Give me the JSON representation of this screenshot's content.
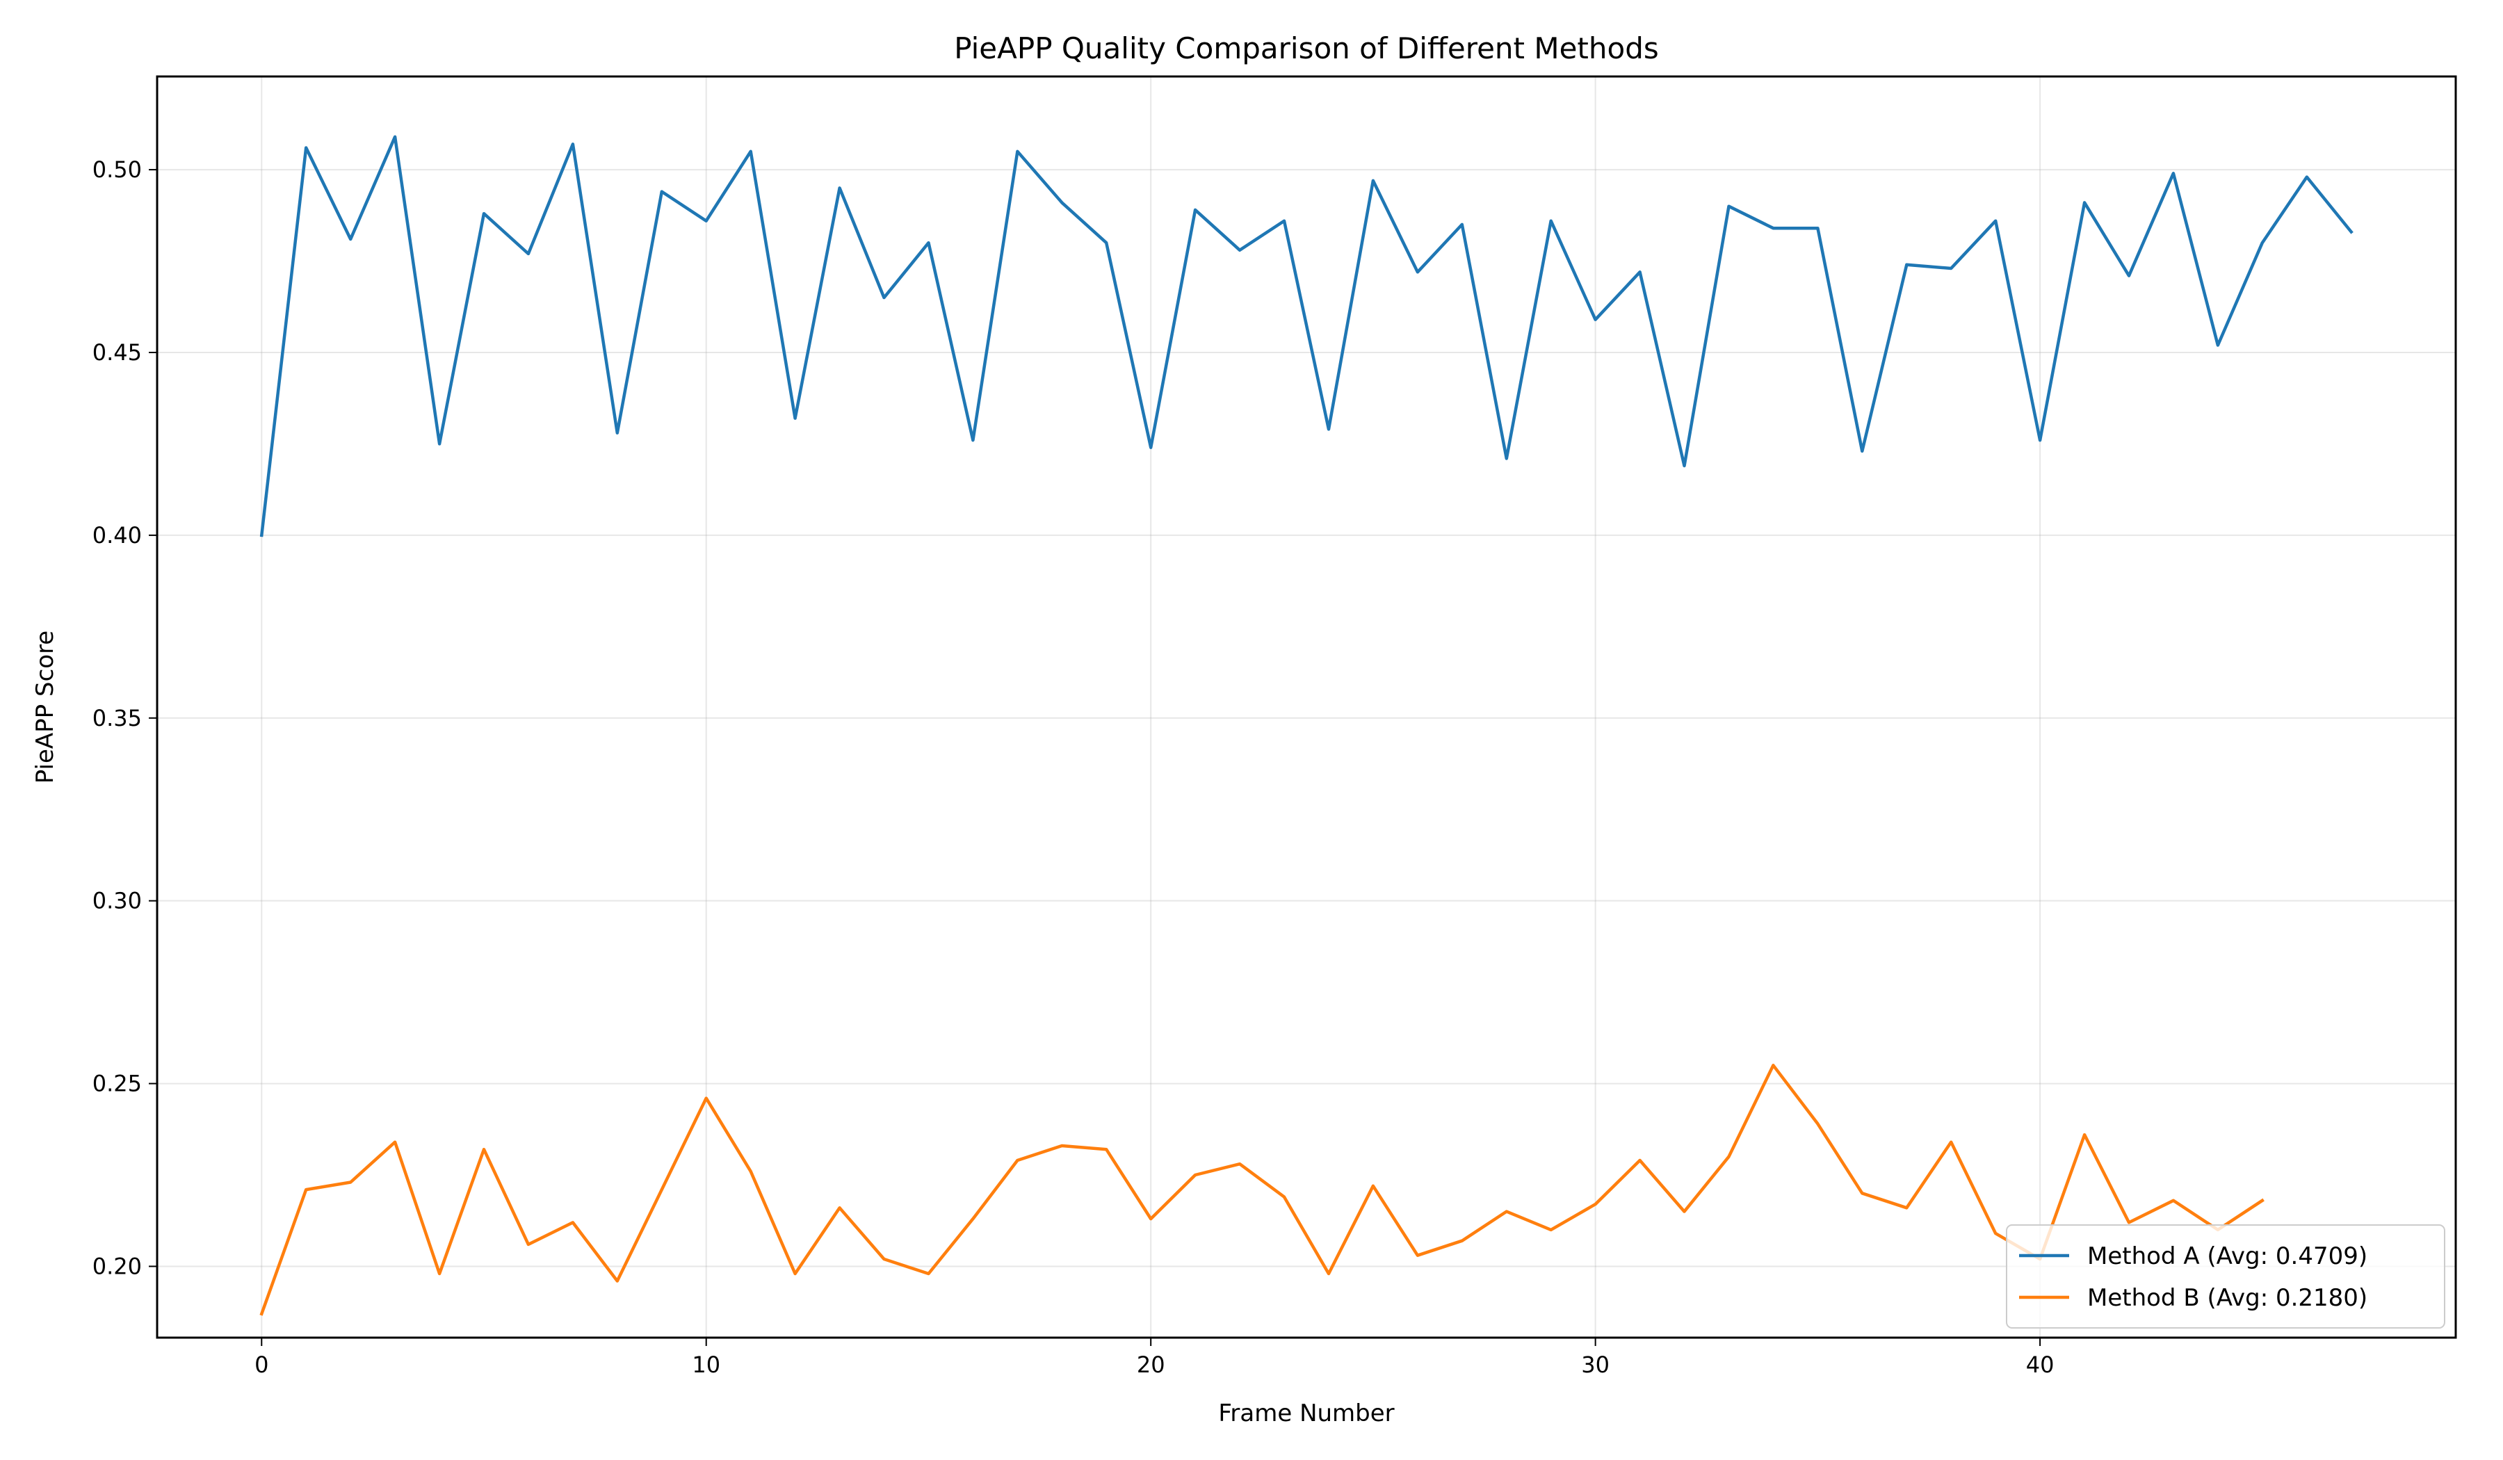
{
  "chart_data": {
    "type": "line",
    "title": "PieAPP Quality Comparison of Different Methods",
    "xlabel": "Frame Number",
    "ylabel": "PieAPP Score",
    "xlim": [
      -2.35,
      49.35
    ],
    "ylim": [
      0.1805,
      0.5255
    ],
    "xticks": [
      0,
      10,
      20,
      30,
      40
    ],
    "xtick_labels": [
      "0",
      "10",
      "20",
      "30",
      "40"
    ],
    "yticks": [
      0.2,
      0.25,
      0.3,
      0.35,
      0.4,
      0.45,
      0.5
    ],
    "ytick_labels": [
      "0.20",
      "0.25",
      "0.30",
      "0.35",
      "0.40",
      "0.45",
      "0.50"
    ],
    "grid": true,
    "legend_position": "bottom-right",
    "series": [
      {
        "name": "Method A (Avg: 0.4709)",
        "color": "#1f77b4",
        "x": [
          0,
          1,
          2,
          3,
          4,
          5,
          6,
          7,
          8,
          9,
          10,
          11,
          12,
          13,
          14,
          15,
          16,
          17,
          18,
          19,
          20,
          21,
          22,
          23,
          24,
          25,
          26,
          27,
          28,
          29,
          30,
          31,
          32,
          33,
          34,
          35,
          36,
          37,
          38,
          39,
          40,
          41,
          42,
          43,
          44,
          45,
          46,
          47
        ],
        "values": [
          0.4,
          0.506,
          0.481,
          0.509,
          0.425,
          0.488,
          0.477,
          0.507,
          0.428,
          0.494,
          0.486,
          0.505,
          0.432,
          0.495,
          0.465,
          0.48,
          0.426,
          0.505,
          0.491,
          0.48,
          0.424,
          0.489,
          0.478,
          0.486,
          0.429,
          0.497,
          0.472,
          0.485,
          0.421,
          0.486,
          0.459,
          0.472,
          0.419,
          0.49,
          0.484,
          0.484,
          0.423,
          0.474,
          0.473,
          0.486,
          0.426,
          0.491,
          0.471,
          0.499,
          0.452,
          0.48,
          0.498,
          0.483
        ]
      },
      {
        "name": "Method B (Avg: 0.2180)",
        "color": "#ff7f0e",
        "x": [
          0,
          1,
          2,
          3,
          4,
          5,
          6,
          7,
          8,
          9,
          10,
          11,
          12,
          13,
          14,
          15,
          16,
          17,
          18,
          19,
          20,
          21,
          22,
          23,
          24,
          25,
          26,
          27,
          28,
          29,
          30,
          31,
          32,
          33,
          34,
          35,
          36,
          37,
          38,
          39,
          40,
          41,
          42,
          43,
          44,
          45
        ],
        "values": [
          0.187,
          0.221,
          0.223,
          0.234,
          0.198,
          0.232,
          0.206,
          0.212,
          0.196,
          0.221,
          0.246,
          0.226,
          0.198,
          0.216,
          0.202,
          0.198,
          0.213,
          0.229,
          0.233,
          0.232,
          0.213,
          0.225,
          0.228,
          0.219,
          0.198,
          0.222,
          0.203,
          0.207,
          0.215,
          0.21,
          0.217,
          0.229,
          0.215,
          0.23,
          0.255,
          0.239,
          0.22,
          0.216,
          0.234,
          0.209,
          0.202,
          0.236,
          0.212,
          0.218,
          0.21,
          0.218
        ]
      }
    ]
  }
}
